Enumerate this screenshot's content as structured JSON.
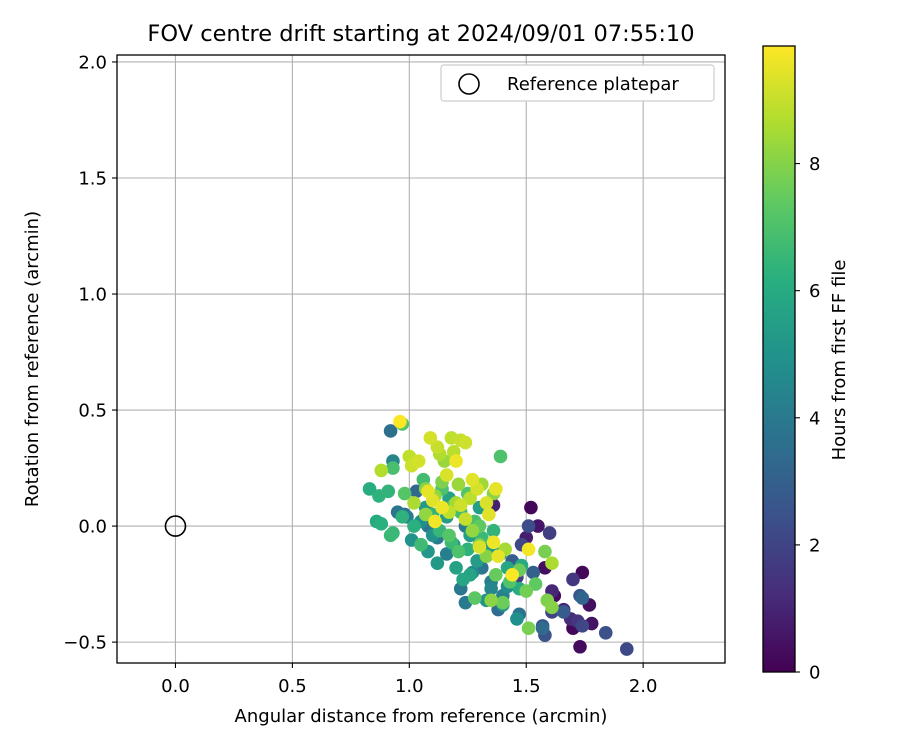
{
  "chart_data": {
    "type": "scatter",
    "title": "FOV centre drift starting at 2024/09/01 07:55:10",
    "xlabel": "Angular distance from reference (arcmin)",
    "ylabel": "Rotation from reference (arcmin)",
    "xlim": [
      -0.25,
      2.35
    ],
    "ylim": [
      -0.59,
      2.03
    ],
    "xticks": [
      0.0,
      0.5,
      1.0,
      1.5,
      2.0
    ],
    "xtick_labels": [
      "0.0",
      "0.5",
      "1.0",
      "1.5",
      "2.0"
    ],
    "yticks": [
      -0.5,
      0.0,
      0.5,
      1.0,
      1.5,
      2.0
    ],
    "ytick_labels": [
      "−0.5",
      "0.0",
      "0.5",
      "1.0",
      "1.5",
      "2.0"
    ],
    "grid": true,
    "legend": {
      "position": "top-right",
      "entries": [
        "Reference platepar"
      ]
    },
    "reference_point": {
      "x": 0.0,
      "y": 0.0,
      "label": "Reference platepar"
    },
    "colorbar": {
      "label": "Hours from first FF file",
      "colormap": "viridis",
      "range": [
        0,
        9.85
      ],
      "ticks": [
        0,
        2,
        4,
        6,
        8
      ],
      "tick_labels": [
        "0",
        "2",
        "4",
        "6",
        "8"
      ]
    },
    "points": [
      {
        "x": 1.73,
        "y": -0.52,
        "h": 0.3
      },
      {
        "x": 1.7,
        "y": -0.44,
        "h": 0.2
      },
      {
        "x": 1.78,
        "y": -0.42,
        "h": 0.5
      },
      {
        "x": 1.77,
        "y": -0.34,
        "h": 0.4
      },
      {
        "x": 1.74,
        "y": -0.2,
        "h": 0.2
      },
      {
        "x": 1.62,
        "y": -0.3,
        "h": 0.3
      },
      {
        "x": 1.58,
        "y": -0.18,
        "h": 0.4
      },
      {
        "x": 1.52,
        "y": 0.08,
        "h": 0.2
      },
      {
        "x": 1.55,
        "y": 0.0,
        "h": 0.6
      },
      {
        "x": 1.5,
        "y": -0.05,
        "h": 0.8
      },
      {
        "x": 1.66,
        "y": -0.36,
        "h": 1.0
      },
      {
        "x": 1.69,
        "y": -0.4,
        "h": 1.2
      },
      {
        "x": 1.72,
        "y": -0.41,
        "h": 1.5
      },
      {
        "x": 1.7,
        "y": -0.23,
        "h": 1.6
      },
      {
        "x": 1.61,
        "y": -0.28,
        "h": 1.1
      },
      {
        "x": 1.6,
        "y": -0.03,
        "h": 1.8
      },
      {
        "x": 1.93,
        "y": -0.53,
        "h": 2.2
      },
      {
        "x": 1.84,
        "y": -0.46,
        "h": 2.4
      },
      {
        "x": 1.74,
        "y": -0.43,
        "h": 2.1
      },
      {
        "x": 1.73,
        "y": -0.3,
        "h": 2.6
      },
      {
        "x": 1.66,
        "y": -0.37,
        "h": 2.8
      },
      {
        "x": 1.61,
        "y": -0.37,
        "h": 2.0
      },
      {
        "x": 1.58,
        "y": -0.47,
        "h": 2.5
      },
      {
        "x": 1.51,
        "y": 0.0,
        "h": 2.3
      },
      {
        "x": 1.57,
        "y": -0.43,
        "h": 2.7
      },
      {
        "x": 1.48,
        "y": -0.08,
        "h": 2.1
      },
      {
        "x": 1.53,
        "y": -0.2,
        "h": 3.0
      },
      {
        "x": 1.46,
        "y": -0.22,
        "h": 1.9
      },
      {
        "x": 1.36,
        "y": 0.09,
        "h": 0.9
      },
      {
        "x": 1.44,
        "y": -0.15,
        "h": 2.9
      },
      {
        "x": 1.74,
        "y": -0.31,
        "h": 3.2
      },
      {
        "x": 1.57,
        "y": -0.44,
        "h": 3.4
      },
      {
        "x": 1.38,
        "y": -0.36,
        "h": 3.5
      },
      {
        "x": 1.47,
        "y": -0.38,
        "h": 3.7
      },
      {
        "x": 0.92,
        "y": 0.41,
        "h": 3.6
      },
      {
        "x": 1.22,
        "y": -0.27,
        "h": 3.9
      },
      {
        "x": 1.24,
        "y": -0.33,
        "h": 4.0
      },
      {
        "x": 1.35,
        "y": -0.24,
        "h": 4.2
      },
      {
        "x": 1.31,
        "y": -0.18,
        "h": 3.8
      },
      {
        "x": 0.98,
        "y": 0.05,
        "h": 3.6
      },
      {
        "x": 1.03,
        "y": 0.15,
        "h": 3.3
      },
      {
        "x": 0.95,
        "y": 0.06,
        "h": 3.8
      },
      {
        "x": 1.4,
        "y": -0.3,
        "h": 4.3
      },
      {
        "x": 0.93,
        "y": 0.28,
        "h": 4.4
      },
      {
        "x": 0.99,
        "y": 0.04,
        "h": 4.1
      },
      {
        "x": 1.08,
        "y": 0.0,
        "h": 3.9
      },
      {
        "x": 1.12,
        "y": -0.05,
        "h": 4.0
      },
      {
        "x": 1.16,
        "y": -0.12,
        "h": 4.2
      },
      {
        "x": 1.27,
        "y": -0.2,
        "h": 4.6
      },
      {
        "x": 1.35,
        "y": -0.27,
        "h": 4.5
      },
      {
        "x": 1.3,
        "y": -0.08,
        "h": 3.9
      },
      {
        "x": 1.24,
        "y": 0.0,
        "h": 4.1
      },
      {
        "x": 1.42,
        "y": -0.26,
        "h": 4.8
      },
      {
        "x": 1.46,
        "y": -0.4,
        "h": 4.9
      },
      {
        "x": 1.4,
        "y": -0.34,
        "h": 5.0
      },
      {
        "x": 1.33,
        "y": -0.32,
        "h": 5.1
      },
      {
        "x": 1.08,
        "y": -0.11,
        "h": 5.2
      },
      {
        "x": 1.1,
        "y": -0.04,
        "h": 5.0
      },
      {
        "x": 1.12,
        "y": -0.16,
        "h": 5.3
      },
      {
        "x": 1.16,
        "y": 0.04,
        "h": 5.4
      },
      {
        "x": 1.19,
        "y": -0.08,
        "h": 5.2
      },
      {
        "x": 1.26,
        "y": -0.04,
        "h": 5.5
      },
      {
        "x": 1.29,
        "y": -0.15,
        "h": 5.4
      },
      {
        "x": 1.17,
        "y": 0.12,
        "h": 5.6
      },
      {
        "x": 1.3,
        "y": 0.08,
        "h": 5.5
      },
      {
        "x": 1.07,
        "y": 0.08,
        "h": 5.2
      },
      {
        "x": 1.05,
        "y": 0.02,
        "h": 4.8
      },
      {
        "x": 1.01,
        "y": -0.06,
        "h": 5.0
      },
      {
        "x": 1.23,
        "y": -0.23,
        "h": 5.8
      },
      {
        "x": 1.2,
        "y": -0.18,
        "h": 5.6
      },
      {
        "x": 1.26,
        "y": -0.21,
        "h": 5.7
      },
      {
        "x": 1.39,
        "y": -0.12,
        "h": 5.9
      },
      {
        "x": 1.42,
        "y": -0.18,
        "h": 5.8
      },
      {
        "x": 1.48,
        "y": -0.17,
        "h": 6.0
      },
      {
        "x": 1.47,
        "y": -0.27,
        "h": 6.1
      },
      {
        "x": 1.34,
        "y": -0.1,
        "h": 5.3
      },
      {
        "x": 0.88,
        "y": 0.01,
        "h": 6.2
      },
      {
        "x": 0.86,
        "y": 0.02,
        "h": 6.0
      },
      {
        "x": 0.83,
        "y": 0.16,
        "h": 6.1
      },
      {
        "x": 0.87,
        "y": 0.13,
        "h": 6.3
      },
      {
        "x": 0.91,
        "y": 0.15,
        "h": 6.4
      },
      {
        "x": 0.92,
        "y": -0.04,
        "h": 6.6
      },
      {
        "x": 0.93,
        "y": -0.03,
        "h": 6.5
      },
      {
        "x": 0.97,
        "y": 0.04,
        "h": 6.3
      },
      {
        "x": 1.02,
        "y": 0.0,
        "h": 6.2
      },
      {
        "x": 1.05,
        "y": -0.08,
        "h": 6.7
      },
      {
        "x": 1.1,
        "y": 0.05,
        "h": 6.4
      },
      {
        "x": 1.13,
        "y": -0.02,
        "h": 6.5
      },
      {
        "x": 1.18,
        "y": -0.07,
        "h": 6.6
      },
      {
        "x": 1.22,
        "y": 0.06,
        "h": 6.8
      },
      {
        "x": 1.28,
        "y": 0.02,
        "h": 6.9
      },
      {
        "x": 1.25,
        "y": -0.1,
        "h": 6.3
      },
      {
        "x": 1.31,
        "y": -0.05,
        "h": 6.6
      },
      {
        "x": 1.36,
        "y": -0.02,
        "h": 6.4
      },
      {
        "x": 1.39,
        "y": 0.3,
        "h": 7.0
      },
      {
        "x": 0.97,
        "y": 0.44,
        "h": 7.1
      },
      {
        "x": 0.93,
        "y": 0.25,
        "h": 6.9
      },
      {
        "x": 0.98,
        "y": 0.14,
        "h": 7.2
      },
      {
        "x": 1.06,
        "y": 0.2,
        "h": 6.8
      },
      {
        "x": 1.14,
        "y": 0.16,
        "h": 7.0
      },
      {
        "x": 1.19,
        "y": 0.09,
        "h": 7.3
      },
      {
        "x": 1.25,
        "y": 0.14,
        "h": 7.1
      },
      {
        "x": 1.3,
        "y": 0.0,
        "h": 7.4
      },
      {
        "x": 1.17,
        "y": -0.04,
        "h": 7.2
      },
      {
        "x": 1.21,
        "y": -0.11,
        "h": 7.0
      },
      {
        "x": 1.28,
        "y": -0.31,
        "h": 7.3
      },
      {
        "x": 1.37,
        "y": -0.21,
        "h": 7.5
      },
      {
        "x": 1.43,
        "y": -0.24,
        "h": 7.1
      },
      {
        "x": 1.47,
        "y": -0.19,
        "h": 7.6
      },
      {
        "x": 1.5,
        "y": -0.28,
        "h": 7.7
      },
      {
        "x": 1.54,
        "y": -0.25,
        "h": 7.4
      },
      {
        "x": 1.58,
        "y": -0.11,
        "h": 7.8
      },
      {
        "x": 1.59,
        "y": -0.32,
        "h": 7.9
      },
      {
        "x": 1.61,
        "y": -0.35,
        "h": 8.0
      },
      {
        "x": 1.51,
        "y": -0.44,
        "h": 7.8
      },
      {
        "x": 1.35,
        "y": -0.32,
        "h": 8.1
      },
      {
        "x": 1.4,
        "y": -0.33,
        "h": 7.6
      },
      {
        "x": 1.33,
        "y": -0.13,
        "h": 8.0
      },
      {
        "x": 1.3,
        "y": -0.08,
        "h": 7.7
      },
      {
        "x": 1.27,
        "y": -0.02,
        "h": 8.2
      },
      {
        "x": 1.15,
        "y": 0.28,
        "h": 8.3
      },
      {
        "x": 1.07,
        "y": 0.16,
        "h": 8.0
      },
      {
        "x": 1.11,
        "y": 0.13,
        "h": 8.2
      },
      {
        "x": 1.14,
        "y": 0.19,
        "h": 7.9
      },
      {
        "x": 1.21,
        "y": 0.18,
        "h": 8.3
      },
      {
        "x": 1.31,
        "y": 0.18,
        "h": 8.4
      },
      {
        "x": 1.36,
        "y": 0.14,
        "h": 8.1
      },
      {
        "x": 1.41,
        "y": -0.1,
        "h": 8.5
      },
      {
        "x": 1.61,
        "y": -0.16,
        "h": 8.6
      },
      {
        "x": 1.07,
        "y": 0.05,
        "h": 8.2
      },
      {
        "x": 1.2,
        "y": 0.1,
        "h": 8.5
      },
      {
        "x": 1.02,
        "y": 0.1,
        "h": 8.6
      },
      {
        "x": 0.88,
        "y": 0.24,
        "h": 8.7
      },
      {
        "x": 1.0,
        "y": 0.3,
        "h": 8.9
      },
      {
        "x": 1.19,
        "y": 0.32,
        "h": 8.8
      },
      {
        "x": 1.18,
        "y": 0.38,
        "h": 8.9
      },
      {
        "x": 1.22,
        "y": 0.37,
        "h": 9.0
      },
      {
        "x": 1.24,
        "y": 0.36,
        "h": 9.1
      },
      {
        "x": 1.09,
        "y": 0.38,
        "h": 9.2
      },
      {
        "x": 1.12,
        "y": 0.34,
        "h": 9.0
      },
      {
        "x": 1.13,
        "y": 0.31,
        "h": 8.7
      },
      {
        "x": 1.01,
        "y": 0.26,
        "h": 9.1
      },
      {
        "x": 1.04,
        "y": 0.28,
        "h": 9.2
      },
      {
        "x": 1.16,
        "y": 0.22,
        "h": 9.3
      },
      {
        "x": 1.27,
        "y": 0.2,
        "h": 9.4
      },
      {
        "x": 1.29,
        "y": 0.16,
        "h": 9.2
      },
      {
        "x": 1.33,
        "y": 0.1,
        "h": 9.3
      },
      {
        "x": 1.37,
        "y": 0.16,
        "h": 9.5
      },
      {
        "x": 1.34,
        "y": 0.05,
        "h": 9.4
      },
      {
        "x": 1.36,
        "y": -0.07,
        "h": 9.6
      },
      {
        "x": 1.38,
        "y": -0.13,
        "h": 9.5
      },
      {
        "x": 1.3,
        "y": -0.09,
        "h": 9.3
      },
      {
        "x": 1.24,
        "y": 0.03,
        "h": 9.0
      },
      {
        "x": 1.14,
        "y": 0.08,
        "h": 9.6
      },
      {
        "x": 1.1,
        "y": 0.11,
        "h": 9.4
      },
      {
        "x": 1.08,
        "y": 0.15,
        "h": 9.5
      },
      {
        "x": 1.11,
        "y": 0.02,
        "h": 9.7
      },
      {
        "x": 1.2,
        "y": 0.28,
        "h": 9.6
      },
      {
        "x": 0.96,
        "y": 0.45,
        "h": 9.8
      },
      {
        "x": 1.51,
        "y": -0.1,
        "h": 9.7
      },
      {
        "x": 1.44,
        "y": -0.21,
        "h": 9.8
      },
      {
        "x": 1.22,
        "y": 0.09,
        "h": 9.1
      },
      {
        "x": 1.26,
        "y": 0.12,
        "h": 8.8
      },
      {
        "x": 1.17,
        "y": 0.06,
        "h": 8.9
      }
    ]
  }
}
